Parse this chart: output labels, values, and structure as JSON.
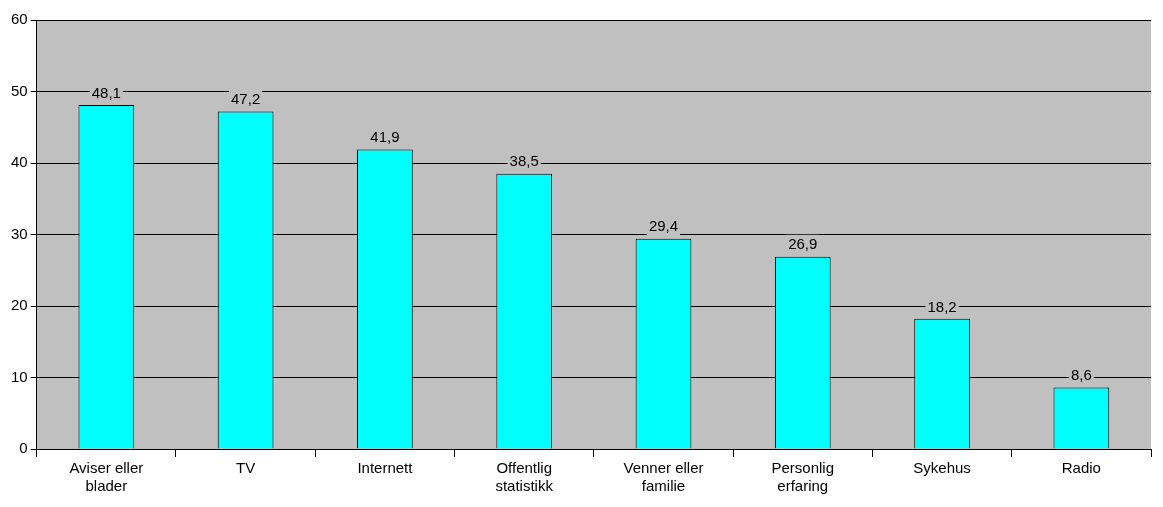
{
  "chart_data": {
    "type": "bar",
    "categories": [
      "Aviser eller blader",
      "TV",
      "Internett",
      "Offentlig statistikk",
      "Venner eller familie",
      "Personlig erfaring",
      "Sykehus",
      "Radio"
    ],
    "values": [
      48.1,
      47.2,
      41.9,
      38.5,
      29.4,
      26.9,
      18.2,
      8.6
    ],
    "value_labels": [
      "48,1",
      "47,2",
      "41,9",
      "38,5",
      "29,4",
      "26,9",
      "18,2",
      "8,6"
    ],
    "color": "#00ffff",
    "ylim": [
      0,
      60
    ],
    "yticks": [
      0,
      10,
      20,
      30,
      40,
      50,
      60
    ],
    "grid": "y",
    "legend": false
  }
}
